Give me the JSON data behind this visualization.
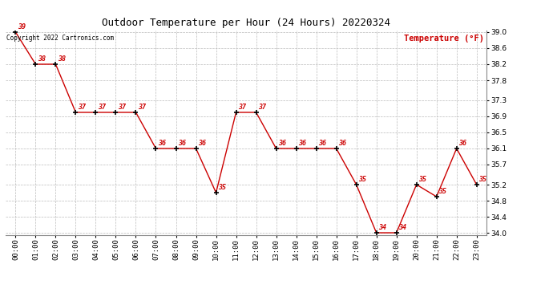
{
  "title": "Outdoor Temperature per Hour (24 Hours) 20220324",
  "ylabel": "Temperature (°F)",
  "copyright": "Copyright 2022 Cartronics.com",
  "hours": [
    "00:00",
    "01:00",
    "02:00",
    "03:00",
    "04:00",
    "05:00",
    "06:00",
    "07:00",
    "08:00",
    "09:00",
    "10:00",
    "11:00",
    "12:00",
    "13:00",
    "14:00",
    "15:00",
    "16:00",
    "17:00",
    "18:00",
    "19:00",
    "20:00",
    "21:00",
    "22:00",
    "23:00"
  ],
  "temps": [
    39.0,
    38.2,
    38.2,
    37.0,
    37.0,
    37.0,
    37.0,
    36.1,
    36.1,
    36.1,
    35.0,
    37.0,
    37.0,
    36.1,
    36.1,
    36.1,
    36.1,
    35.2,
    34.0,
    34.0,
    35.2,
    34.9,
    36.1,
    35.2
  ],
  "ylim_min": 33.95,
  "ylim_max": 39.05,
  "yticks": [
    34.0,
    34.4,
    34.8,
    35.2,
    35.7,
    36.1,
    36.5,
    36.9,
    37.3,
    37.8,
    38.2,
    38.6,
    39.0
  ],
  "line_color": "#cc0000",
  "marker_color": "#000000",
  "label_color": "#cc0000",
  "bg_color": "#ffffff",
  "title_color": "#000000",
  "copyright_color": "#000000",
  "ylabel_color": "#cc0000",
  "grid_color": "#bbbbbb",
  "title_fontsize": 9,
  "label_fontsize": 6,
  "tick_fontsize": 6.5,
  "copyright_fontsize": 5.5,
  "ylabel_fontsize": 7.5
}
